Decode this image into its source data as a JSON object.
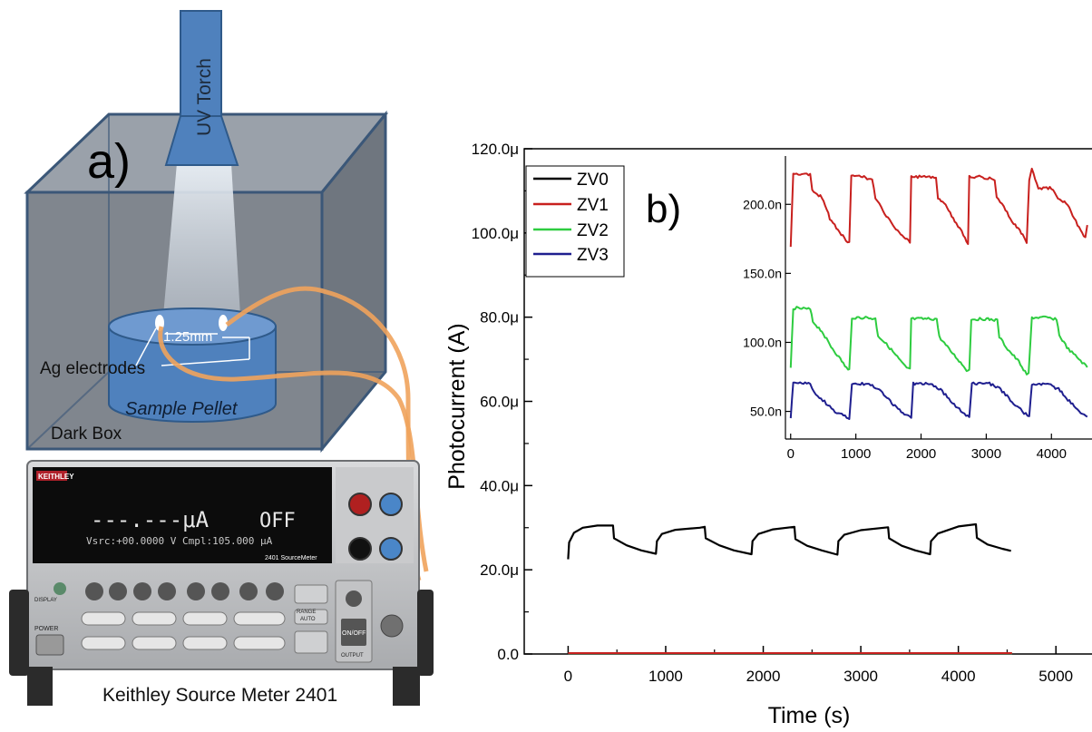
{
  "panel_a": {
    "label": "a)",
    "torch_label": "UV Torch",
    "gap_label": "1.25mm",
    "electrodes_label": "Ag electrodes",
    "pellet_label": "Sample Pellet",
    "box_label": "Dark Box",
    "meter_caption": "Keithley Source Meter 2401",
    "meter": {
      "brand": "KEITHLEY",
      "display_main": "---.---μA",
      "display_off": "OFF",
      "display_sub": "Vsrc:+00.0000 V   Cmpl:105.000 μA",
      "model": "2401 SourceMeter",
      "power_label": "POWER",
      "display_label": "DISPLAY",
      "onoff_label": "ON/OFF",
      "output_label": "OUTPUT",
      "range_label": "RANGE",
      "auto_label": "AUTO"
    }
  },
  "chart_data": [
    {
      "type": "line",
      "panel_label": "b)",
      "xlabel": "Time (s)",
      "ylabel": "Photocurrent (A)",
      "xlim": [
        -450,
        5500
      ],
      "ylim": [
        0,
        120
      ],
      "xticks": [
        "0",
        "1000",
        "2000",
        "3000",
        "4000",
        "5000"
      ],
      "yticks": [
        "0.0",
        "20.0μ",
        "40.0μ",
        "60.0μ",
        "80.0μ",
        "100.0μ",
        "120.0μ"
      ],
      "legend": [
        "ZV0",
        "ZV1",
        "ZV2",
        "ZV3"
      ],
      "legend_position": "top-left",
      "series": [
        {
          "name": "ZV0",
          "color": "#000000",
          "units": "μA",
          "x": [
            0,
            10,
            60,
            150,
            300,
            460,
            470,
            600,
            750,
            900,
            910,
            960,
            1100,
            1350,
            1400,
            1410,
            1550,
            1700,
            1880,
            1890,
            1950,
            2100,
            2320,
            2330,
            2450,
            2600,
            2760,
            2770,
            2830,
            3000,
            3280,
            3290,
            3420,
            3560,
            3710,
            3720,
            3790,
            4000,
            4180,
            4190,
            4300,
            4450,
            4540
          ],
          "y": [
            22.5,
            26.5,
            28.8,
            30.0,
            30.5,
            30.5,
            27.5,
            25.8,
            24.6,
            23.8,
            26.8,
            28.5,
            29.5,
            30.0,
            30.2,
            27.5,
            25.8,
            24.6,
            23.7,
            26.8,
            28.5,
            29.6,
            30.2,
            27.3,
            25.7,
            24.6,
            23.6,
            26.8,
            28.3,
            29.4,
            30.1,
            27.5,
            25.7,
            24.6,
            23.7,
            26.8,
            28.6,
            30.3,
            30.8,
            27.6,
            26.0,
            25.0,
            24.5
          ]
        },
        {
          "name": "ZV1",
          "color": "#c8201e",
          "units": "μA",
          "x": [
            0,
            4550
          ],
          "y": [
            0.2,
            0.2
          ]
        },
        {
          "name": "ZV2",
          "color": "#2ecc40",
          "units": "μA",
          "x": [
            0,
            4550
          ],
          "y": [
            0.1,
            0.1
          ]
        },
        {
          "name": "ZV3",
          "color": "#1f1f8f",
          "units": "μA",
          "x": [
            0,
            4550
          ],
          "y": [
            0.05,
            0.05
          ]
        }
      ]
    },
    {
      "type": "line",
      "inset": true,
      "xlim": [
        -80,
        4650
      ],
      "ylim": [
        30,
        235
      ],
      "xticks": [
        "0",
        "1000",
        "2000",
        "3000",
        "4000"
      ],
      "yticks": [
        "50.0n",
        "100.0n",
        "150.0n",
        "200.0n"
      ],
      "series": [
        {
          "name": "ZV1",
          "color": "#c8201e",
          "units": "nA",
          "x": [
            0,
            40,
            300,
            330,
            480,
            600,
            750,
            850,
            900,
            930,
            1100,
            1250,
            1300,
            1360,
            1520,
            1640,
            1760,
            1830,
            1850,
            2050,
            2230,
            2260,
            2400,
            2540,
            2650,
            2720,
            2740,
            2920,
            3130,
            3160,
            3270,
            3420,
            3560,
            3620,
            3660,
            3700,
            3800,
            4000,
            4100,
            4250,
            4400,
            4520,
            4550
          ],
          "y": [
            170,
            222,
            222,
            210,
            205,
            190,
            180,
            174,
            172,
            220,
            220,
            218,
            205,
            200,
            188,
            181,
            176,
            172,
            220,
            220,
            220,
            205,
            198,
            186,
            178,
            171,
            220,
            220,
            218,
            205,
            198,
            186,
            178,
            171,
            218,
            226,
            211,
            212,
            205,
            200,
            185,
            176,
            185
          ]
        },
        {
          "name": "ZV2",
          "color": "#2ecc40",
          "units": "nA",
          "x": [
            0,
            40,
            300,
            340,
            480,
            620,
            760,
            880,
            900,
            940,
            1150,
            1300,
            1340,
            1520,
            1660,
            1780,
            1830,
            1850,
            2060,
            2240,
            2280,
            2430,
            2560,
            2700,
            2740,
            2770,
            2980,
            3170,
            3200,
            3330,
            3500,
            3620,
            3650,
            3700,
            3900,
            4080,
            4120,
            4260,
            4420,
            4550
          ],
          "y": [
            81,
            125,
            124,
            115,
            108,
            97,
            88,
            80,
            80,
            118,
            118,
            117,
            105,
            96,
            88,
            81,
            81,
            117,
            117,
            117,
            104,
            95,
            88,
            80,
            80,
            117,
            117,
            116,
            104,
            95,
            86,
            77,
            77,
            118,
            118,
            117,
            105,
            95,
            88,
            82
          ]
        },
        {
          "name": "ZV3",
          "color": "#1f1f8f",
          "units": "nA",
          "x": [
            0,
            40,
            300,
            360,
            520,
            680,
            860,
            900,
            940,
            1200,
            1360,
            1550,
            1720,
            1820,
            1850,
            1880,
            2120,
            2300,
            2480,
            2640,
            2740,
            2780,
            3050,
            3220,
            3420,
            3580,
            3660,
            3700,
            3940,
            4110,
            4300,
            4450,
            4550
          ],
          "y": [
            45,
            71,
            70,
            64,
            57,
            50,
            46,
            45,
            70,
            70,
            66,
            56,
            49,
            46,
            46,
            70,
            70,
            66,
            56,
            49,
            46,
            70,
            70,
            66,
            56,
            49,
            46,
            70,
            70,
            66,
            56,
            49,
            46
          ]
        }
      ]
    }
  ]
}
